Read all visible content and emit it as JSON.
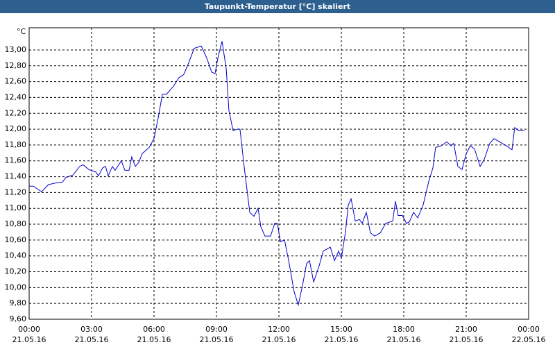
{
  "chart_data": {
    "type": "line",
    "title": "Taupunkt-Temperatur [°C] skaliert",
    "y_label": "°C",
    "xlim": [
      0,
      24
    ],
    "xticks": [
      {
        "value": 0,
        "label": "00:00"
      },
      {
        "value": 3,
        "label": "03:00"
      },
      {
        "value": 6,
        "label": "06:00"
      },
      {
        "value": 9,
        "label": "09:00"
      },
      {
        "value": 12,
        "label": "12:00"
      },
      {
        "value": 15,
        "label": "15:00"
      },
      {
        "value": 18,
        "label": "18:00"
      },
      {
        "value": 21,
        "label": "21:00"
      },
      {
        "value": 24,
        "label": "00:00"
      }
    ],
    "xtick_dates": [
      "21.05.16",
      "21.05.16",
      "21.05.16",
      "21.05.16",
      "21.05.16",
      "21.05.16",
      "21.05.16",
      "21.05.16",
      "22.05.16"
    ],
    "ylim": [
      9.6,
      13.28
    ],
    "yticks": [
      {
        "value": 9.6,
        "label": "9,60"
      },
      {
        "value": 9.8,
        "label": "9,80"
      },
      {
        "value": 10.0,
        "label": "10,00"
      },
      {
        "value": 10.2,
        "label": "10,20"
      },
      {
        "value": 10.4,
        "label": "10,40"
      },
      {
        "value": 10.6,
        "label": "10,60"
      },
      {
        "value": 10.8,
        "label": "10,80"
      },
      {
        "value": 11.0,
        "label": "11,00"
      },
      {
        "value": 11.2,
        "label": "11,20"
      },
      {
        "value": 11.4,
        "label": "11,40"
      },
      {
        "value": 11.6,
        "label": "11,60"
      },
      {
        "value": 11.8,
        "label": "11,80"
      },
      {
        "value": 12.0,
        "label": "12,00"
      },
      {
        "value": 12.2,
        "label": "12,20"
      },
      {
        "value": 12.4,
        "label": "12,40"
      },
      {
        "value": 12.6,
        "label": "12,60"
      },
      {
        "value": 12.8,
        "label": "12,80"
      },
      {
        "value": 13.0,
        "label": "13,00"
      }
    ],
    "grid": true,
    "x": [
      0,
      0.2,
      0.6,
      0.93,
      1.27,
      1.6,
      1.77,
      2.1,
      2.43,
      2.6,
      2.87,
      3.2,
      3.33,
      3.53,
      3.67,
      3.8,
      4.0,
      4.13,
      4.43,
      4.6,
      4.8,
      4.93,
      5.1,
      5.27,
      5.43,
      5.77,
      6.0,
      6.2,
      6.4,
      6.6,
      6.93,
      7.2,
      7.43,
      7.67,
      7.93,
      8.27,
      8.53,
      8.77,
      8.93,
      9.07,
      9.27,
      9.47,
      9.6,
      9.8,
      10.0,
      10.13,
      10.33,
      10.6,
      10.8,
      11.0,
      11.13,
      11.33,
      11.6,
      11.8,
      11.93,
      12.07,
      12.27,
      12.47,
      12.73,
      12.93,
      13.13,
      13.33,
      13.47,
      13.67,
      13.93,
      14.13,
      14.47,
      14.67,
      14.87,
      15.0,
      15.2,
      15.33,
      15.47,
      15.67,
      15.87,
      16.0,
      16.2,
      16.4,
      16.6,
      16.87,
      17.13,
      17.47,
      17.6,
      17.73,
      17.93,
      18.13,
      18.27,
      18.47,
      18.67,
      18.93,
      19.2,
      19.4,
      19.53,
      19.8,
      20.07,
      20.27,
      20.4,
      20.6,
      20.8,
      21.0,
      21.2,
      21.4,
      21.67,
      21.87,
      22.13,
      22.33,
      22.6,
      22.93,
      23.2,
      23.33,
      23.53,
      23.8
    ],
    "series": [
      {
        "name": "Taupunkt",
        "color": "#0000cc",
        "values": [
          11.28,
          11.28,
          11.21,
          11.3,
          11.32,
          11.33,
          11.39,
          11.42,
          11.53,
          11.55,
          11.49,
          11.46,
          11.41,
          11.51,
          11.53,
          11.41,
          11.53,
          11.48,
          11.6,
          11.48,
          11.48,
          11.65,
          11.53,
          11.58,
          11.69,
          11.77,
          11.88,
          12.14,
          12.44,
          12.44,
          12.54,
          12.65,
          12.69,
          12.84,
          13.02,
          13.05,
          12.9,
          12.72,
          12.7,
          12.9,
          13.11,
          12.76,
          12.23,
          11.98,
          12.0,
          12.0,
          11.53,
          10.95,
          10.9,
          11.0,
          10.77,
          10.65,
          10.65,
          10.81,
          10.81,
          10.58,
          10.6,
          10.34,
          9.95,
          9.78,
          10.02,
          10.3,
          10.34,
          10.07,
          10.27,
          10.46,
          10.51,
          10.34,
          10.46,
          10.37,
          10.7,
          11.04,
          11.12,
          10.84,
          10.86,
          10.81,
          10.95,
          10.69,
          10.65,
          10.69,
          10.81,
          10.84,
          11.09,
          10.91,
          10.91,
          10.81,
          10.83,
          10.95,
          10.88,
          11.04,
          11.34,
          11.51,
          11.77,
          11.79,
          11.84,
          11.79,
          11.82,
          11.53,
          11.49,
          11.69,
          11.79,
          11.75,
          11.53,
          11.62,
          11.82,
          11.88,
          11.84,
          11.79,
          11.74,
          12.02,
          11.98,
          11.98
        ]
      }
    ]
  }
}
